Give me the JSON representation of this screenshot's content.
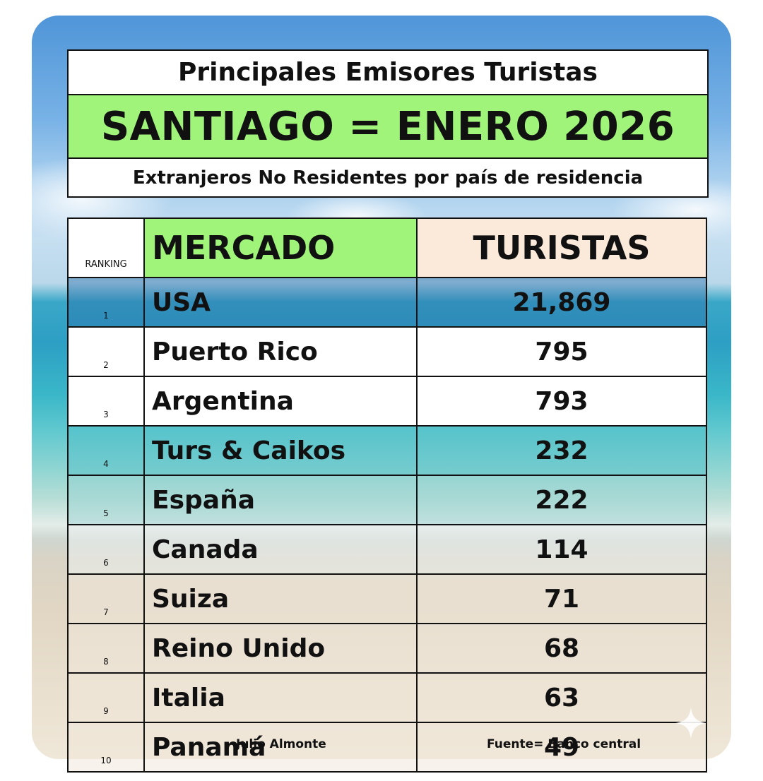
{
  "header": {
    "line1": "Principales Emisores Turistas",
    "line2": "SANTIAGO = ENERO 2026",
    "line3": "Extranjeros No Residentes por país de residencia"
  },
  "table": {
    "headers": {
      "rank": "RANKING",
      "market": "MERCADO",
      "tourists": "TURISTAS"
    },
    "rows": [
      {
        "rank": "1",
        "market": "USA",
        "tourists": "21,869"
      },
      {
        "rank": "2",
        "market": "Puerto Rico",
        "tourists": "795"
      },
      {
        "rank": "3",
        "market": "Argentina",
        "tourists": "793"
      },
      {
        "rank": "4",
        "market": "Turs & Caikos",
        "tourists": "232"
      },
      {
        "rank": "5",
        "market": "España",
        "tourists": "222"
      },
      {
        "rank": "6",
        "market": "Canada",
        "tourists": "114"
      },
      {
        "rank": "7",
        "market": "Suiza",
        "tourists": "71"
      },
      {
        "rank": "8",
        "market": "Reino Unido",
        "tourists": "68"
      },
      {
        "rank": "9",
        "market": "Italia",
        "tourists": "63"
      },
      {
        "rank": "10",
        "market": "Panamá",
        "tourists": "49"
      }
    ]
  },
  "footer": {
    "author": "Julio Almonte",
    "source": "Fuente= Banco central"
  },
  "colors": {
    "green_header": "#a0f47a",
    "peach_header": "#fbe9d9"
  },
  "icons": {
    "corner": "sparkle-icon"
  }
}
